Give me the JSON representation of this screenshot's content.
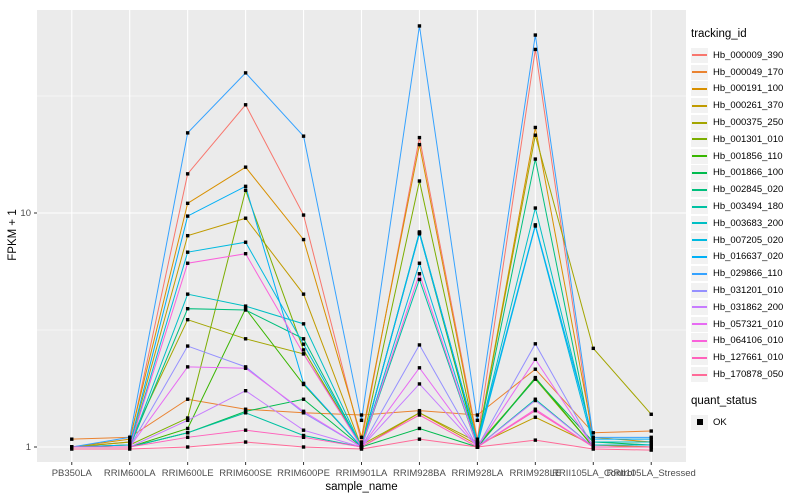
{
  "colors": {
    "panel_bg": "#EBEBEB",
    "grid": "#FFFFFF",
    "tick_text": "#4D4D4D",
    "point": "#000000",
    "key_bg": "#F2F2F2"
  },
  "legend": {
    "tracking_title": "tracking_id",
    "quant_title": "quant_status",
    "quant_items": [
      "OK"
    ]
  },
  "chart_data": {
    "type": "line",
    "title": "",
    "xlabel": "sample_name",
    "ylabel": "FPKM + 1",
    "y_scale": "log10",
    "y_ticks": [
      1,
      10
    ],
    "y_minor_ticks": [
      3.162,
      31.62
    ],
    "ylim": [
      0.86,
      74
    ],
    "grid": true,
    "legend_position": "right",
    "point_shape": "filled-square",
    "categories": [
      "PB350LA",
      "RRIM600LA",
      "RRIM600LE",
      "RRIM600SE",
      "RRIM600PE",
      "RRIM901LA",
      "RRIM928BA",
      "RRIM928LA",
      "RRIM928LE",
      "RRII105LA_Control",
      "RRII105LA_Stressed"
    ],
    "series": [
      {
        "name": "Hb_000009_390",
        "color": "#F8766D",
        "values": [
          1.0,
          1.05,
          14.7,
          29.0,
          9.8,
          1.05,
          21.0,
          1.08,
          50.0,
          1.02,
          1.0
        ]
      },
      {
        "name": "Hb_000049_170",
        "color": "#EA8331",
        "values": [
          1.08,
          1.1,
          1.6,
          1.45,
          1.4,
          1.37,
          1.43,
          1.37,
          2.15,
          1.15,
          1.17
        ]
      },
      {
        "name": "Hb_000191_100",
        "color": "#D89000",
        "values": [
          1.0,
          1.08,
          11.0,
          15.7,
          7.7,
          1.1,
          19.6,
          1.05,
          23.2,
          1.1,
          1.05
        ]
      },
      {
        "name": "Hb_000261_370",
        "color": "#C09B00",
        "values": [
          1.0,
          1.02,
          8.0,
          9.5,
          4.5,
          1.0,
          1.4,
          1.02,
          1.34,
          1.02,
          1.0
        ]
      },
      {
        "name": "Hb_000375_250",
        "color": "#A3A500",
        "values": [
          1.0,
          1.05,
          3.5,
          2.9,
          2.5,
          1.02,
          1.4,
          1.05,
          21.5,
          2.64,
          1.38
        ]
      },
      {
        "name": "Hb_001301_010",
        "color": "#7CAE00",
        "values": [
          1.0,
          1.02,
          1.33,
          12.5,
          2.6,
          1.0,
          13.7,
          1.02,
          1.95,
          1.0,
          1.0
        ]
      },
      {
        "name": "Hb_001856_110",
        "color": "#39B600",
        "values": [
          1.0,
          1.0,
          1.2,
          3.9,
          1.85,
          1.0,
          8.2,
          1.0,
          1.98,
          1.0,
          1.0
        ]
      },
      {
        "name": "Hb_001866_100",
        "color": "#00BB4E",
        "values": [
          1.0,
          1.0,
          1.15,
          1.42,
          1.6,
          1.0,
          1.2,
          1.0,
          1.96,
          1.05,
          1.02
        ]
      },
      {
        "name": "Hb_002845_020",
        "color": "#00BF7D",
        "values": [
          1.0,
          1.0,
          3.9,
          3.85,
          2.9,
          1.0,
          8.25,
          1.05,
          17.0,
          1.0,
          1.0
        ]
      },
      {
        "name": "Hb_003494_180",
        "color": "#00C1A3",
        "values": [
          1.0,
          1.0,
          1.15,
          1.4,
          1.12,
          1.0,
          5.2,
          1.0,
          1.6,
          1.0,
          1.0
        ]
      },
      {
        "name": "Hb_003683_200",
        "color": "#00BFC4",
        "values": [
          1.0,
          1.0,
          4.5,
          4.0,
          3.36,
          1.0,
          8.3,
          1.05,
          10.5,
          1.05,
          1.05
        ]
      },
      {
        "name": "Hb_007205_020",
        "color": "#00BAE0",
        "values": [
          1.0,
          1.0,
          6.8,
          7.5,
          2.75,
          1.0,
          6.1,
          1.02,
          8.8,
          1.02,
          1.02
        ]
      },
      {
        "name": "Hb_016637_020",
        "color": "#00B0F6",
        "values": [
          1.0,
          1.02,
          9.7,
          13.0,
          1.87,
          1.0,
          8.15,
          1.05,
          8.9,
          1.08,
          1.08
        ]
      },
      {
        "name": "Hb_029866_110",
        "color": "#35A2FF",
        "values": [
          1.0,
          1.1,
          22.0,
          39.7,
          21.3,
          1.3,
          63.0,
          1.3,
          57.6,
          1.1,
          1.1
        ]
      },
      {
        "name": "Hb_031201_010",
        "color": "#9590FF",
        "values": [
          1.0,
          1.0,
          2.7,
          2.2,
          1.4,
          1.0,
          2.73,
          1.0,
          2.76,
          1.0,
          1.0
        ]
      },
      {
        "name": "Hb_031862_200",
        "color": "#C77CFF",
        "values": [
          1.0,
          1.0,
          1.3,
          1.74,
          1.18,
          1.0,
          1.86,
          1.0,
          1.58,
          1.0,
          1.0
        ]
      },
      {
        "name": "Hb_057321_010",
        "color": "#E76BF3",
        "values": [
          1.0,
          1.0,
          2.2,
          2.17,
          1.42,
          1.0,
          2.18,
          1.0,
          2.37,
          1.0,
          1.0
        ]
      },
      {
        "name": "Hb_064106_010",
        "color": "#FA62DB",
        "values": [
          1.0,
          1.0,
          6.1,
          6.7,
          2.5,
          1.0,
          5.5,
          1.0,
          1.45,
          1.0,
          1.0
        ]
      },
      {
        "name": "Hb_127661_010",
        "color": "#FF62BC",
        "values": [
          1.0,
          1.0,
          1.1,
          1.18,
          1.1,
          1.0,
          1.37,
          1.0,
          1.43,
          1.0,
          1.0
        ]
      },
      {
        "name": "Hb_170878_050",
        "color": "#FF6A98",
        "values": [
          0.98,
          0.98,
          1.0,
          1.05,
          1.0,
          0.98,
          1.08,
          1.0,
          1.07,
          0.98,
          0.97
        ]
      }
    ]
  }
}
